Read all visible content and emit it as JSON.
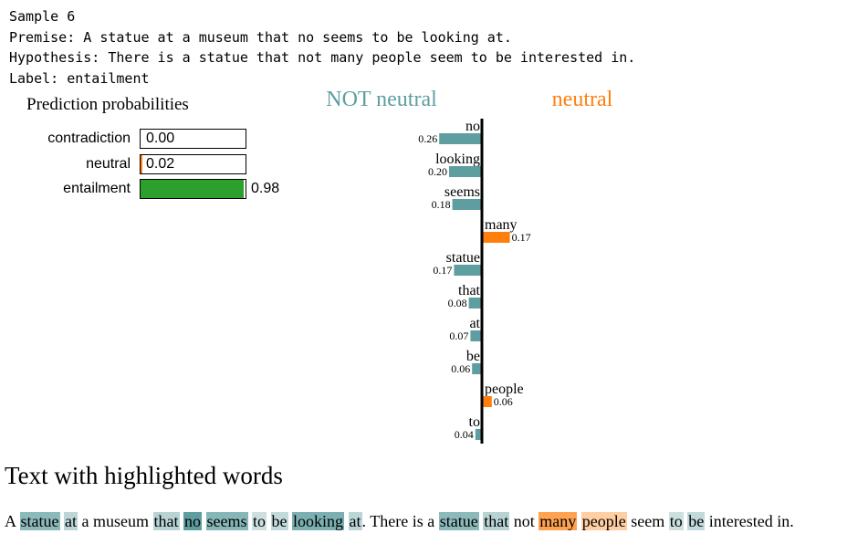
{
  "header": {
    "sample": "Sample 6",
    "premise": "Premise: A statue at a museum that no seems to be looking at.",
    "hypothesis": "Hypothesis: There is a statue that not many people seem to be interested in.",
    "label": "Label: entailment"
  },
  "prediction": {
    "title": "Prediction probabilities",
    "rows": [
      {
        "label": "contradiction",
        "value": 0.0,
        "display": "0.00",
        "color": "#1f77b4"
      },
      {
        "label": "neutral",
        "value": 0.02,
        "display": "0.02",
        "color": "#ff7f0e"
      },
      {
        "label": "entailment",
        "value": 0.98,
        "display": "0.98",
        "color": "#2ca02c"
      }
    ]
  },
  "chart_data": {
    "type": "bar",
    "orientation": "horizontal-diverging",
    "left_title": "NOT neutral",
    "right_title": "neutral",
    "colors": {
      "negative": "#5f9ea0",
      "positive": "#ff7f0e"
    },
    "features": [
      {
        "word": "no",
        "value": -0.26,
        "display": "0.26"
      },
      {
        "word": "looking",
        "value": -0.2,
        "display": "0.20"
      },
      {
        "word": "seems",
        "value": -0.18,
        "display": "0.18"
      },
      {
        "word": "many",
        "value": 0.17,
        "display": "0.17"
      },
      {
        "word": "statue",
        "value": -0.17,
        "display": "0.17"
      },
      {
        "word": "that",
        "value": -0.08,
        "display": "0.08"
      },
      {
        "word": "at",
        "value": -0.07,
        "display": "0.07"
      },
      {
        "word": "be",
        "value": -0.06,
        "display": "0.06"
      },
      {
        "word": "people",
        "value": 0.06,
        "display": "0.06"
      },
      {
        "word": "to",
        "value": -0.04,
        "display": "0.04"
      }
    ]
  },
  "highlight": {
    "title": "Text with highlighted words",
    "tokens": [
      {
        "t": "A",
        "w": 0
      },
      {
        "t": "statue",
        "w": -0.17
      },
      {
        "t": "at",
        "w": -0.07
      },
      {
        "t": "a",
        "w": 0
      },
      {
        "t": "museum",
        "w": 0
      },
      {
        "t": "that",
        "w": -0.08
      },
      {
        "t": "no",
        "w": -0.26
      },
      {
        "t": "seems",
        "w": -0.18
      },
      {
        "t": "to",
        "w": -0.04
      },
      {
        "t": "be",
        "w": -0.06
      },
      {
        "t": "looking",
        "w": -0.2
      },
      {
        "t": "at.",
        "w": -0.07,
        "hl": "at"
      },
      {
        "t": "There",
        "w": 0
      },
      {
        "t": "is",
        "w": 0
      },
      {
        "t": "a",
        "w": 0
      },
      {
        "t": "statue",
        "w": -0.17
      },
      {
        "t": "that",
        "w": -0.08
      },
      {
        "t": "not",
        "w": 0
      },
      {
        "t": "many",
        "w": 0.17
      },
      {
        "t": "people",
        "w": 0.06
      },
      {
        "t": "seem",
        "w": 0
      },
      {
        "t": "to",
        "w": -0.04
      },
      {
        "t": "be",
        "w": -0.06
      },
      {
        "t": "interested",
        "w": 0
      },
      {
        "t": "in.",
        "w": 0
      }
    ]
  }
}
